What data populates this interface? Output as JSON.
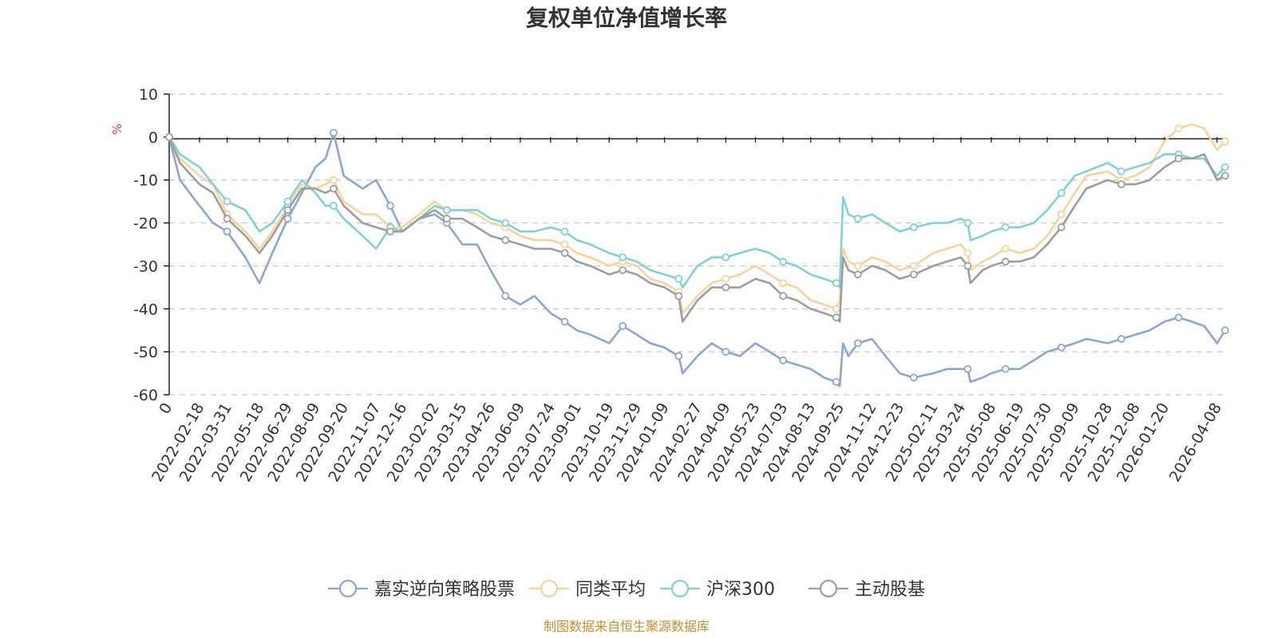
{
  "chart_data": {
    "type": "line",
    "title": "复权单位净值增长率",
    "ylabel": "%",
    "ylim": [
      -60,
      10
    ],
    "yticks": [
      10,
      0,
      -10,
      -20,
      -30,
      -40,
      -50,
      -60
    ],
    "x_origin_label": "0",
    "x_tick_labels": [
      "2022-02-18",
      "2022-03-31",
      "2022-05-18",
      "2022-06-29",
      "2022-08-09",
      "2022-09-20",
      "2022-11-07",
      "2022-12-16",
      "2023-02-02",
      "2023-03-15",
      "2023-04-26",
      "2023-06-09",
      "2023-07-24",
      "2023-09-01",
      "2023-10-19",
      "2023-11-29",
      "2024-01-09",
      "2024-02-27",
      "2024-04-09",
      "2024-05-23",
      "2024-07-03",
      "2024-08-13",
      "2024-09-25",
      "2024-11-12",
      "2024-12-23",
      "2025-02-11",
      "2025-03-24",
      "2025-05-08",
      "2025-06-19",
      "2025-07-30",
      "2025-09-09",
      "2025-10-28",
      "2025-12-08",
      "2026-01-20",
      "2026-04-08"
    ],
    "x": [
      "2022-01-04",
      "2022-01-20",
      "2022-02-18",
      "2022-03-10",
      "2022-03-31",
      "2022-04-27",
      "2022-05-18",
      "2022-06-06",
      "2022-06-29",
      "2022-07-20",
      "2022-08-09",
      "2022-08-24",
      "2022-09-05",
      "2022-09-20",
      "2022-10-18",
      "2022-11-07",
      "2022-11-28",
      "2022-12-16",
      "2023-01-10",
      "2023-02-02",
      "2023-02-20",
      "2023-03-15",
      "2023-04-06",
      "2023-04-26",
      "2023-05-18",
      "2023-06-09",
      "2023-06-30",
      "2023-07-24",
      "2023-08-14",
      "2023-09-01",
      "2023-09-21",
      "2023-10-19",
      "2023-11-08",
      "2023-11-29",
      "2023-12-19",
      "2024-01-09",
      "2024-01-30",
      "2024-02-05",
      "2024-02-27",
      "2024-03-19",
      "2024-04-09",
      "2024-04-30",
      "2024-05-23",
      "2024-06-13",
      "2024-07-03",
      "2024-07-23",
      "2024-08-13",
      "2024-09-02",
      "2024-09-20",
      "2024-09-25",
      "2024-09-30",
      "2024-10-08",
      "2024-10-22",
      "2024-11-12",
      "2024-12-02",
      "2024-12-23",
      "2025-01-13",
      "2025-02-11",
      "2025-03-03",
      "2025-03-24",
      "2025-04-03",
      "2025-04-07",
      "2025-04-25",
      "2025-05-08",
      "2025-05-29",
      "2025-06-19",
      "2025-07-10",
      "2025-07-30",
      "2025-08-20",
      "2025-09-09",
      "2025-09-26",
      "2025-10-28",
      "2025-11-17",
      "2025-12-08",
      "2025-12-29",
      "2026-01-20",
      "2026-02-10",
      "2026-03-02",
      "2026-03-20",
      "2026-04-08",
      "2026-04-20"
    ],
    "series": [
      {
        "name": "嘉实逆向策略股票",
        "color": "#8aa7d6",
        "values": [
          0,
          -10,
          -16,
          -20,
          -22,
          -28,
          -34,
          -27,
          -19,
          -13,
          -7,
          -5,
          1,
          -9,
          -12,
          -10,
          -16,
          -22,
          -19,
          -18,
          -20,
          -25,
          -25,
          -31,
          -37,
          -39,
          -37,
          -41,
          -43,
          -45,
          -46,
          -48,
          -44,
          -46,
          -48,
          -49,
          -51,
          -55,
          -51,
          -48,
          -50,
          -51,
          -48,
          -50,
          -52,
          -53,
          -54,
          -56,
          -57,
          -58,
          -48,
          -51,
          -48,
          -47,
          -51,
          -55,
          -56,
          -55,
          -54,
          -54,
          -54,
          -57,
          -56,
          -55,
          -54,
          -54,
          -52,
          -50,
          -49,
          -48,
          -47,
          -48,
          -47,
          -46,
          -45,
          -43,
          -42,
          -43,
          -44,
          -48,
          -45
        ]
      },
      {
        "name": "同类平均",
        "color": "#f9d49a",
        "values": [
          0,
          -5,
          -9,
          -11,
          -18,
          -22,
          -26,
          -22,
          -16,
          -11,
          -12,
          -11,
          -10,
          -15,
          -18,
          -18,
          -21,
          -21,
          -18,
          -15,
          -17,
          -17,
          -18,
          -20,
          -21,
          -23,
          -24,
          -24,
          -25,
          -27,
          -28,
          -30,
          -29,
          -30,
          -33,
          -34,
          -36,
          -41,
          -37,
          -34,
          -33,
          -32,
          -30,
          -32,
          -34,
          -35,
          -38,
          -39,
          -40,
          -38,
          -26,
          -29,
          -30,
          -28,
          -29,
          -31,
          -30,
          -27,
          -26,
          -25,
          -27,
          -31,
          -29,
          -28,
          -26,
          -27,
          -26,
          -23,
          -18,
          -13,
          -9,
          -8,
          -10,
          -9,
          -7,
          -1,
          2,
          3,
          2,
          -3,
          -1
        ]
      },
      {
        "name": "沪深300",
        "color": "#7fd3d0",
        "values": [
          0,
          -4,
          -7,
          -11,
          -15,
          -17,
          -22,
          -20,
          -15,
          -10,
          -13,
          -16,
          -16,
          -19,
          -23,
          -26,
          -21,
          -22,
          -19,
          -16,
          -17,
          -17,
          -17,
          -19,
          -20,
          -22,
          -22,
          -21,
          -22,
          -24,
          -25,
          -27,
          -28,
          -29,
          -31,
          -32,
          -33,
          -35,
          -30,
          -28,
          -28,
          -27,
          -26,
          -27,
          -29,
          -30,
          -32,
          -33,
          -34,
          -35,
          -14,
          -18,
          -19,
          -18,
          -20,
          -22,
          -21,
          -20,
          -20,
          -19,
          -20,
          -24,
          -23,
          -22,
          -21,
          -21,
          -20,
          -17,
          -13,
          -9,
          -8,
          -6,
          -8,
          -7,
          -6,
          -4,
          -4,
          -5,
          -5,
          -9,
          -7
        ]
      },
      {
        "name": "主动股基",
        "color": "#9e9e9e",
        "values": [
          0,
          -6,
          -11,
          -13,
          -19,
          -23,
          -27,
          -23,
          -17,
          -12,
          -12,
          -13,
          -12,
          -16,
          -20,
          -21,
          -22,
          -22,
          -19,
          -17,
          -19,
          -19,
          -21,
          -23,
          -24,
          -25,
          -26,
          -26,
          -27,
          -29,
          -30,
          -32,
          -31,
          -32,
          -34,
          -35,
          -37,
          -43,
          -38,
          -35,
          -35,
          -35,
          -33,
          -34,
          -37,
          -38,
          -40,
          -41,
          -42,
          -43,
          -28,
          -31,
          -32,
          -30,
          -31,
          -33,
          -32,
          -30,
          -29,
          -28,
          -30,
          -34,
          -31,
          -30,
          -29,
          -29,
          -28,
          -25,
          -21,
          -16,
          -12,
          -10,
          -11,
          -11,
          -10,
          -7,
          -5,
          -5,
          -4,
          -10,
          -9
        ]
      }
    ],
    "legend": [
      "嘉实逆向策略股票",
      "同类平均",
      "沪深300",
      "主动股基"
    ],
    "legend_position": "bottom-center",
    "grid": true
  },
  "source_note": "制图数据来自恒生聚源数据库"
}
